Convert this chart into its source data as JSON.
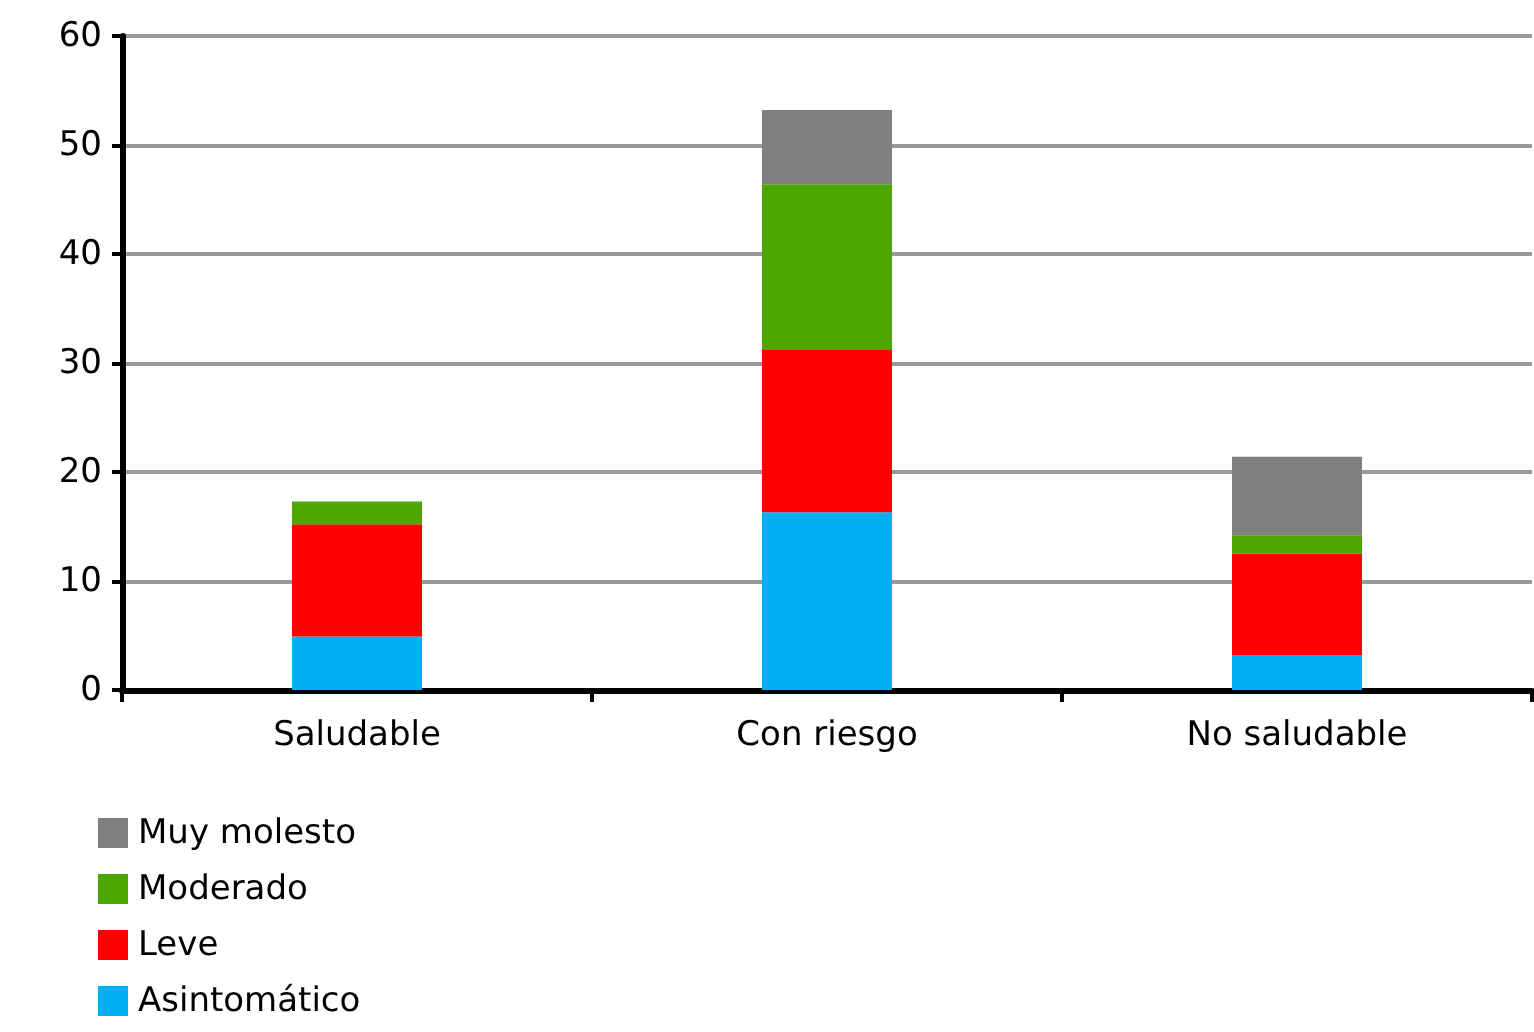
{
  "chart_data": {
    "type": "bar",
    "stacked": true,
    "categories": [
      "Saludable",
      "Con riesgo",
      "No saludable"
    ],
    "series": [
      {
        "name": "Asintomático",
        "color": "#00b0f0",
        "values": [
          4.9,
          16.3,
          3.2
        ]
      },
      {
        "name": "Leve",
        "color": "#ff0000",
        "values": [
          10.3,
          14.9,
          9.3
        ]
      },
      {
        "name": "Moderado",
        "color": "#4ea600",
        "values": [
          2.1,
          15.2,
          1.7
        ]
      },
      {
        "name": "Muy molesto",
        "color": "#808080",
        "values": [
          0,
          6.8,
          7.2
        ]
      }
    ],
    "ylim": [
      0,
      60
    ],
    "yticks": [
      0,
      10,
      20,
      30,
      40,
      50,
      60
    ],
    "grid": "y",
    "legend": "bottom left"
  }
}
